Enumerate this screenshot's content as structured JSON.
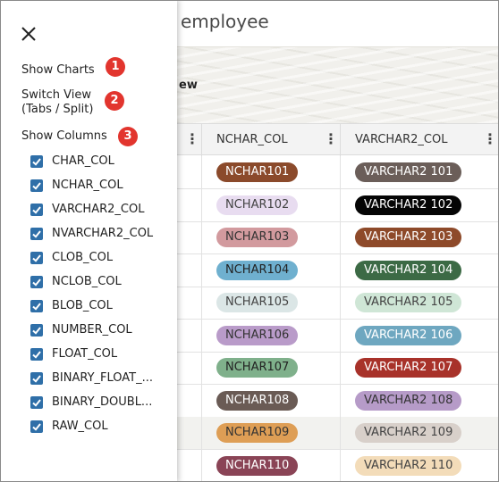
{
  "app": {
    "title": "employee",
    "switch_text_fragment": "ew"
  },
  "panel": {
    "menu": [
      {
        "label": "Show Charts",
        "badge": "1"
      },
      {
        "label": "Switch View (Tabs / Split)",
        "badge": "2"
      },
      {
        "label": "Show Columns",
        "badge": "3"
      }
    ],
    "columns": [
      {
        "label": "CHAR_COL",
        "checked": true
      },
      {
        "label": "NCHAR_COL",
        "checked": true
      },
      {
        "label": "VARCHAR2_COL",
        "checked": true
      },
      {
        "label": "NVARCHAR2_COL",
        "checked": true
      },
      {
        "label": "CLOB_COL",
        "checked": true
      },
      {
        "label": "NCLOB_COL",
        "checked": true
      },
      {
        "label": "BLOB_COL",
        "checked": true
      },
      {
        "label": "NUMBER_COL",
        "checked": true
      },
      {
        "label": "FLOAT_COL",
        "checked": true
      },
      {
        "label": "BINARY_FLOAT_...",
        "checked": true
      },
      {
        "label": "BINARY_DOUBL...",
        "checked": true
      },
      {
        "label": "RAW_COL",
        "checked": true
      }
    ],
    "badge_color": "#e2352e",
    "checkbox_color": "#2f6fa8"
  },
  "grid": {
    "headers": [
      "NCHAR_COL",
      "VARCHAR2_COL"
    ],
    "rows": [
      {
        "nchar": {
          "text": "NCHAR101",
          "bg": "#8b4a2b",
          "fg": "#ffffff"
        },
        "varchar2": {
          "text": "VARCHAR2 101",
          "bg": "#6b5e59",
          "fg": "#ffffff"
        }
      },
      {
        "nchar": {
          "text": "NCHAR102",
          "bg": "#e8dcf0",
          "fg": "#444444"
        },
        "varchar2": {
          "text": "VARCHAR2 102",
          "bg": "#050505",
          "fg": "#ffffff"
        }
      },
      {
        "nchar": {
          "text": "NCHAR103",
          "bg": "#d29a9e",
          "fg": "#333333"
        },
        "varchar2": {
          "text": "VARCHAR2 103",
          "bg": "#8e4a2a",
          "fg": "#ffffff"
        }
      },
      {
        "nchar": {
          "text": "NCHAR104",
          "bg": "#6fb0cf",
          "fg": "#222222"
        },
        "varchar2": {
          "text": "VARCHAR2 104",
          "bg": "#3c6a45",
          "fg": "#ffffff"
        }
      },
      {
        "nchar": {
          "text": "NCHAR105",
          "bg": "#dbe6e6",
          "fg": "#444444"
        },
        "varchar2": {
          "text": "VARCHAR2 105",
          "bg": "#cfe6d6",
          "fg": "#444444"
        }
      },
      {
        "nchar": {
          "text": "NCHAR106",
          "bg": "#b99bc9",
          "fg": "#333333"
        },
        "varchar2": {
          "text": "VARCHAR2 106",
          "bg": "#6ea7c0",
          "fg": "#ffffff"
        }
      },
      {
        "nchar": {
          "text": "NCHAR107",
          "bg": "#7fb08b",
          "fg": "#222222"
        },
        "varchar2": {
          "text": "VARCHAR2 107",
          "bg": "#a8322a",
          "fg": "#ffffff"
        }
      },
      {
        "nchar": {
          "text": "NCHAR108",
          "bg": "#6a5b55",
          "fg": "#ffffff"
        },
        "varchar2": {
          "text": "VARCHAR2 108",
          "bg": "#b69bc8",
          "fg": "#333333"
        }
      },
      {
        "nchar": {
          "text": "NCHAR109",
          "bg": "#de9e55",
          "fg": "#333333"
        },
        "varchar2": {
          "text": "VARCHAR2 109",
          "bg": "#d8d0ca",
          "fg": "#444444"
        }
      },
      {
        "nchar": {
          "text": "NCHAR110",
          "bg": "#8a4456",
          "fg": "#ffffff"
        },
        "varchar2": {
          "text": "VARCHAR2 110",
          "bg": "#f3dcb9",
          "fg": "#444444"
        }
      }
    ]
  },
  "icons": {
    "close": "close-icon",
    "kebab": "kebab-menu-icon",
    "checkbox": "checkmark-icon"
  }
}
